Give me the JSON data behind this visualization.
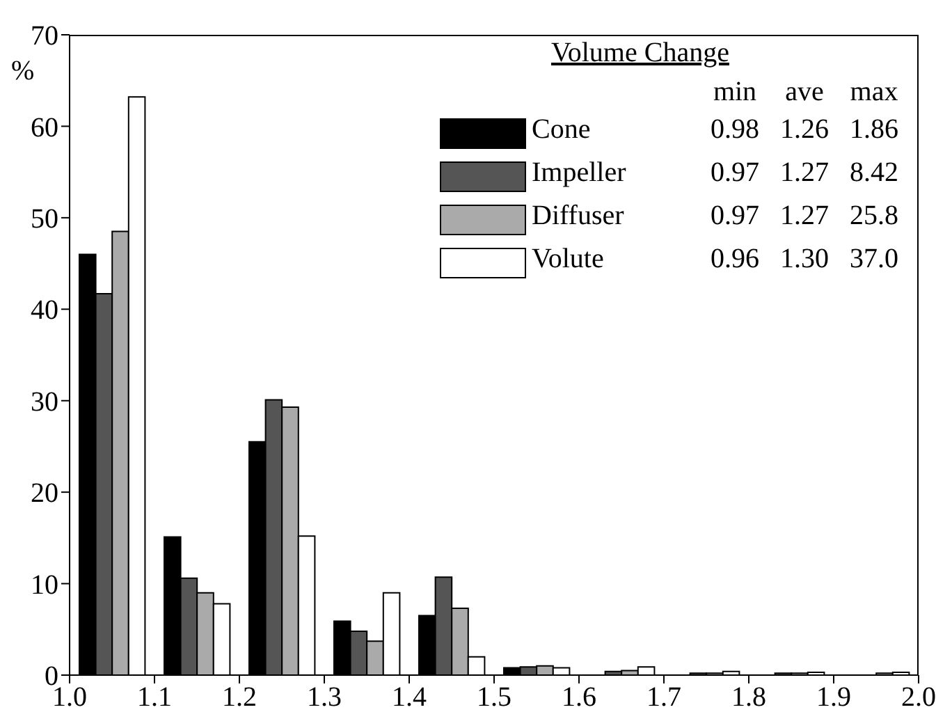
{
  "chart_data": {
    "type": "bar",
    "ylabel": "%",
    "legend_title": "Volume Change",
    "legend": "top right",
    "x": [
      1.05,
      1.15,
      1.25,
      1.35,
      1.45,
      1.55,
      1.65,
      1.75,
      1.85,
      1.95
    ],
    "series": [
      {
        "name": "Cone",
        "color": "#000000",
        "values": [
          46,
          15.1,
          25.5,
          5.9,
          6.5,
          0.8,
          null,
          null,
          null,
          null
        ]
      },
      {
        "name": "Impeller",
        "color": "#555555",
        "values": [
          41.7,
          10.6,
          30.1,
          4.8,
          10.7,
          0.9,
          0.4,
          0.2,
          0.2,
          null
        ]
      },
      {
        "name": "Diffuser",
        "color": "#aaaaaa",
        "values": [
          48.5,
          9,
          29.3,
          3.7,
          7.3,
          1,
          0.5,
          0.2,
          0.2,
          0.2
        ]
      },
      {
        "name": "Volute",
        "color": "#ffffff",
        "values": [
          63.2,
          7.8,
          15.2,
          9,
          2,
          0.8,
          0.9,
          0.4,
          0.3,
          0.3
        ]
      }
    ],
    "annotations": [
      "min",
      "ave",
      "max",
      "0.98",
      "1.26",
      "1.86",
      "0.97",
      "1.27",
      "8.42",
      "0.97",
      "1.27",
      "25.8",
      "0.96",
      "1.30",
      "37.0"
    ],
    "xlim": [
      1,
      2
    ],
    "xticks": [
      {
        "value": 1,
        "label": "1.0"
      },
      1.1,
      1.2,
      1.3,
      1.4,
      1.5,
      1.6,
      1.7,
      1.8,
      1.9,
      {
        "value": 2,
        "label": "2.0"
      }
    ],
    "ylim": [
      0,
      70
    ],
    "yticks": [
      0,
      10,
      20,
      30,
      40,
      50,
      60,
      70
    ],
    "grid": false
  }
}
